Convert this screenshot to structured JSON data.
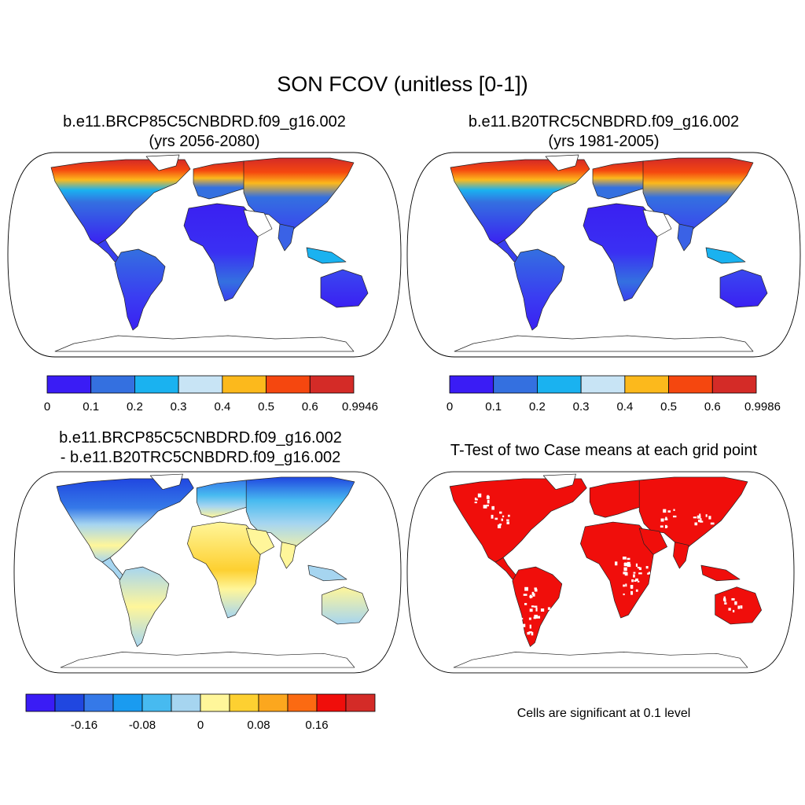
{
  "title": "SON FCOV (unitless [0-1])",
  "panels": [
    {
      "line1": "b.e11.BRCP85C5CNBDRD.f09_g16.002",
      "line2": "(yrs 2056-2080)",
      "colorbar": {
        "colors": [
          "#3a1cf5",
          "#3470e0",
          "#1ab2f0",
          "#c8e4f5",
          "#fcb91c",
          "#f5470f",
          "#d42b27"
        ],
        "labels": [
          "0",
          "0.1",
          "0.2",
          "0.3",
          "0.4",
          "0.5",
          "0.6",
          "0.9946"
        ]
      }
    },
    {
      "line1": "b.e11.B20TRC5CNBDRD.f09_g16.002",
      "line2": "(yrs 1981-2005)",
      "colorbar": {
        "colors": [
          "#3a1cf5",
          "#3470e0",
          "#1ab2f0",
          "#c8e4f5",
          "#fcb91c",
          "#f5470f",
          "#d42b27"
        ],
        "labels": [
          "0",
          "0.1",
          "0.2",
          "0.3",
          "0.4",
          "0.5",
          "0.6",
          "0.9986"
        ]
      }
    },
    {
      "line1": "b.e11.BRCP85C5CNBDRD.f09_g16.002",
      "line2": "- b.e11.B20TRC5CNBDRD.f09_g16.002",
      "colorbar": {
        "colors": [
          "#3a1cf5",
          "#2047e0",
          "#3579e8",
          "#1a9bf0",
          "#47baf0",
          "#a6d5f0",
          "#fff69a",
          "#fdd031",
          "#fca71e",
          "#fb6a12",
          "#f00e0b",
          "#d42b27"
        ],
        "labels": [
          "-0.16",
          "-0.08",
          "0",
          "0.08",
          "0.16"
        ]
      }
    },
    {
      "line1": "T-Test of two Case means at each grid point",
      "note": "Cells are significant at 0.1 level"
    }
  ]
}
